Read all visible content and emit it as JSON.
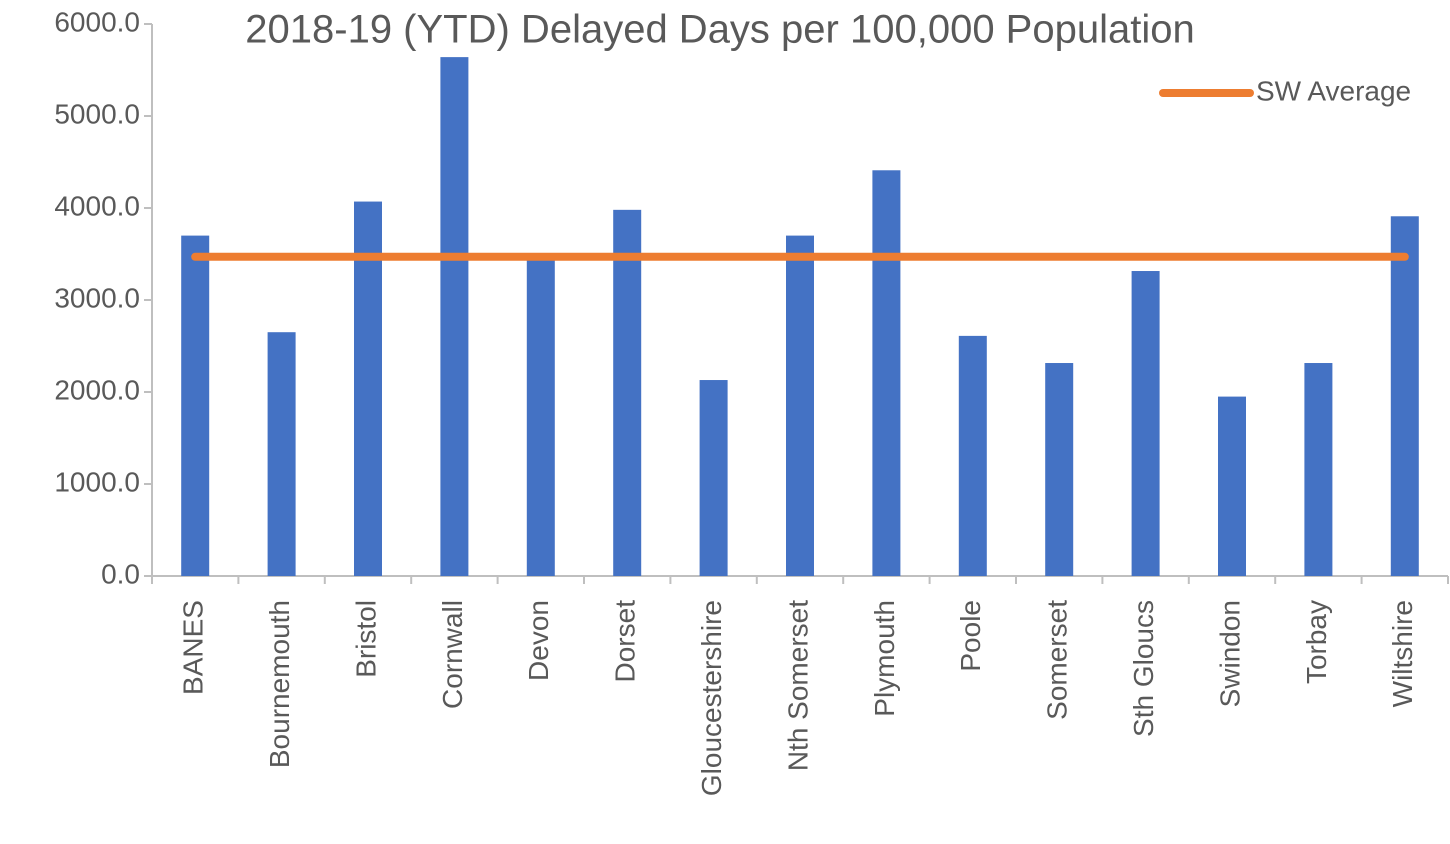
{
  "chart_data": {
    "type": "bar",
    "title": "2018-19 (YTD) Delayed Days per 100,000 Population",
    "categories": [
      "BANES",
      "Bournemouth",
      "Bristol",
      "Cornwall",
      "Devon",
      "Dorset",
      "Gloucestershire",
      "Nth Somerset",
      "Plymouth",
      "Poole",
      "Somerset",
      "Sth Gloucs",
      "Swindon",
      "Torbay",
      "Wiltshire"
    ],
    "series": [
      {
        "type": "bar",
        "color": "#4472c4",
        "values": [
          3700,
          2650,
          4070,
          5640,
          3460,
          3980,
          2130,
          3700,
          4410,
          2610,
          2315,
          3315,
          1950,
          2315,
          3910
        ]
      },
      {
        "type": "line",
        "name": "SW Average",
        "color": "#ed7d31",
        "values": [
          3470,
          3470,
          3470,
          3470,
          3470,
          3470,
          3470,
          3470,
          3470,
          3470,
          3470,
          3470,
          3470,
          3470,
          3470
        ]
      }
    ],
    "ylim": [
      0,
      6000
    ],
    "yticks": [
      {
        "value": 0,
        "label": "0.0"
      },
      {
        "value": 1000,
        "label": "1000.0"
      },
      {
        "value": 2000,
        "label": "2000.0"
      },
      {
        "value": 3000,
        "label": "3000.0"
      },
      {
        "value": 4000,
        "label": "4000.0"
      },
      {
        "value": 5000,
        "label": "5000.0"
      },
      {
        "value": 6000,
        "label": "6000.0"
      }
    ],
    "legend": "top-right"
  }
}
